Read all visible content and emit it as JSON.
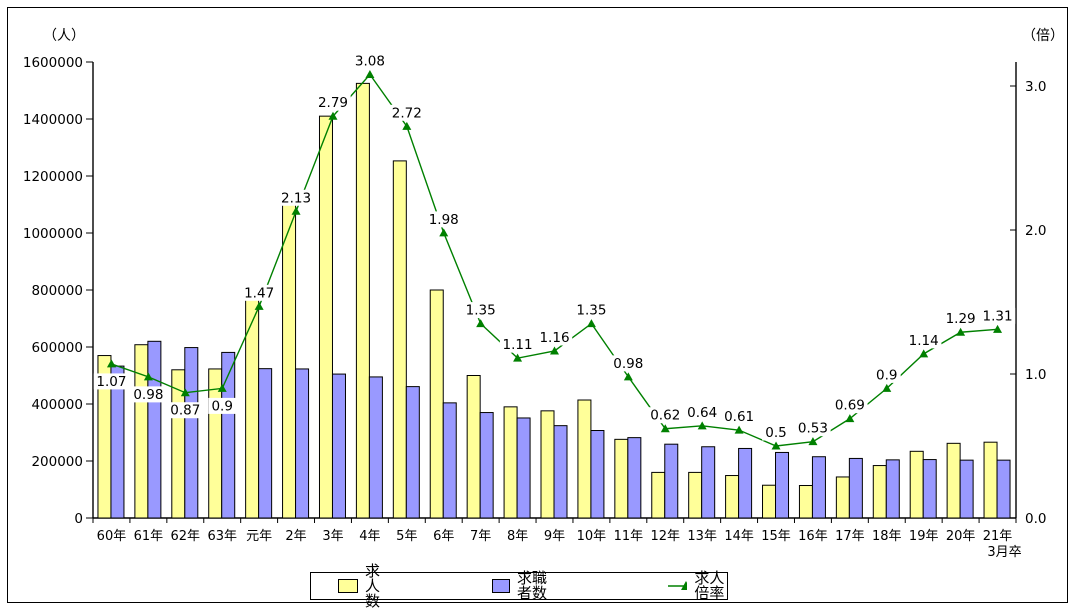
{
  "chart_data": {
    "type": "bar",
    "subtype": "combo-bar-line",
    "unit_left": "（人）",
    "unit_right": "（倍）",
    "categories": [
      "60年",
      "61年",
      "62年",
      "63年",
      "元年",
      "2年",
      "3年",
      "4年",
      "5年",
      "6年",
      "7年",
      "8年",
      "9年",
      "10年",
      "11年",
      "12年",
      "13年",
      "14年",
      "15年",
      "16年",
      "17年",
      "18年",
      "19年",
      "20年",
      "21年"
    ],
    "last_category_note": "3月卒",
    "series": [
      {
        "name": "求人数",
        "type": "bar",
        "axis": "left",
        "color": "#FFFF99",
        "values": [
          570000,
          608000,
          520000,
          523000,
          770000,
          1115000,
          1410000,
          1525000,
          1253000,
          800000,
          500000,
          390000,
          376000,
          414000,
          276000,
          160000,
          160000,
          149000,
          115000,
          114000,
          144000,
          184000,
          234000,
          262000,
          266000
        ]
      },
      {
        "name": "求職者数",
        "type": "bar",
        "axis": "left",
        "color": "#9999FF",
        "values": [
          533000,
          620000,
          598000,
          581000,
          524000,
          523000,
          505000,
          495000,
          461000,
          404000,
          370000,
          351000,
          324000,
          307000,
          282000,
          259000,
          250000,
          244000,
          230000,
          215000,
          209000,
          204000,
          205000,
          203000,
          203000
        ]
      },
      {
        "name": "求人倍率",
        "type": "line",
        "axis": "right",
        "color": "#008000",
        "marker": "triangle",
        "values": [
          1.07,
          0.98,
          0.87,
          0.9,
          1.47,
          2.13,
          2.79,
          3.08,
          2.72,
          1.98,
          1.35,
          1.11,
          1.16,
          1.35,
          0.98,
          0.62,
          0.64,
          0.61,
          0.5,
          0.53,
          0.69,
          0.9,
          1.14,
          1.29,
          1.31
        ],
        "point_labels": [
          "1.07",
          "0.98",
          "0.87",
          "0.9",
          "1.47",
          "2.13",
          "2.79",
          "3.08",
          "2.72",
          "1.98",
          "1.35",
          "1.11",
          "1.16",
          "1.35",
          "0.98",
          "0.62",
          "0.64",
          "0.61",
          "0.5",
          "0.53",
          "0.69",
          "0.9",
          "1.14",
          "1.29",
          "1.31"
        ],
        "labels_below_indices": [
          0,
          1,
          2,
          3
        ]
      }
    ],
    "left_axis": {
      "min": 0,
      "max": 1600000,
      "tick_step": 200000,
      "tick_labels": [
        "0",
        "200000",
        "400000",
        "600000",
        "800000",
        "1000000",
        "1200000",
        "1400000",
        "1600000"
      ]
    },
    "right_axis": {
      "min": 0.0,
      "max": 3.2,
      "ticks": [
        0.0,
        1.0,
        2.0,
        3.0
      ],
      "tick_labels": [
        "0.0",
        "1.0",
        "2.0",
        "3.0"
      ]
    },
    "grid": false,
    "legend_position": "bottom-center",
    "legend": {
      "items": [
        {
          "label": "求人数",
          "swatch_color": "#FFFF99"
        },
        {
          "label": "求職者数",
          "swatch_color": "#9999FF"
        },
        {
          "label": "求人倍率",
          "line_color": "#008000"
        }
      ]
    },
    "colors": {
      "bar1": "#FFFF99",
      "bar2": "#9999FF",
      "line": "#008000",
      "axis": "#000000",
      "background": "#FFFFFF"
    }
  }
}
